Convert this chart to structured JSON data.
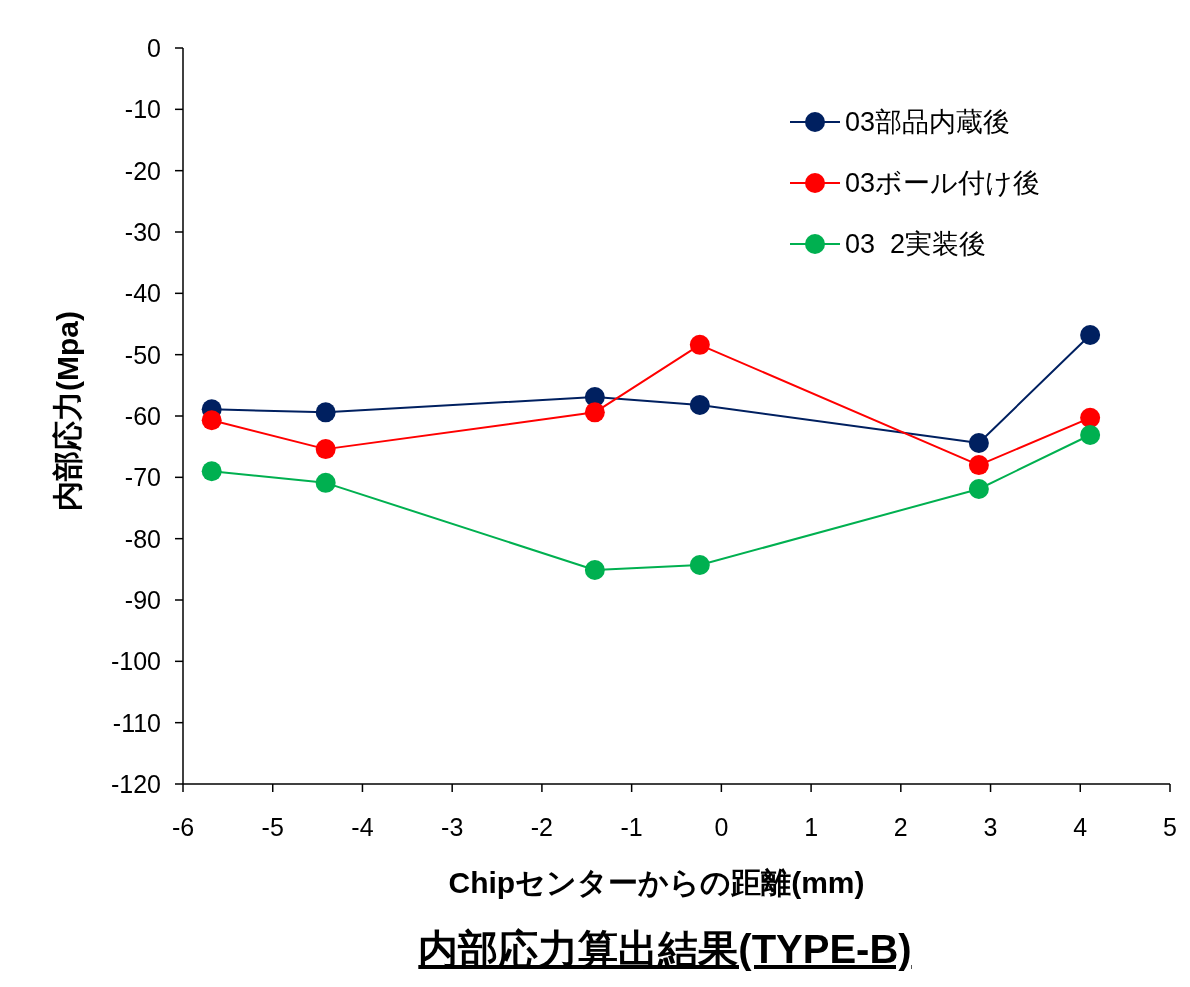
{
  "chart_data": {
    "type": "line",
    "title": "内部応力算出結果(TYPE-B)",
    "xlabel": "Chipセンターからの距離(mm)",
    "ylabel": "内部応力(Mpa)",
    "x": [
      -5.68,
      -4.41,
      -1.41,
      -0.24,
      2.87,
      4.11
    ],
    "series": [
      {
        "name": "03部品内蔵後",
        "color": "#002060",
        "values": [
          -58.9,
          -59.4,
          -56.9,
          -58.2,
          -64.4,
          -46.8
        ]
      },
      {
        "name": "03ボール付け後",
        "color": "#ff0000",
        "values": [
          -60.7,
          -65.4,
          -59.4,
          -48.4,
          -68.0,
          -60.3
        ]
      },
      {
        "name": "03  2実装後",
        "color": "#00b050",
        "values": [
          -69.0,
          -70.9,
          -85.1,
          -84.3,
          -71.9,
          -63.1
        ]
      }
    ],
    "xlim": [
      -6,
      5
    ],
    "xticks": [
      -6,
      -5,
      -4,
      -3,
      -2,
      -1,
      0,
      1,
      2,
      3,
      4,
      5
    ],
    "ylim": [
      -120,
      0
    ],
    "yticks": [
      0,
      -10,
      -20,
      -30,
      -40,
      -50,
      -60,
      -70,
      -80,
      -90,
      -100,
      -110,
      -120
    ],
    "marker": "circle",
    "line_style": "solid",
    "legend": "top right",
    "grid": false
  }
}
